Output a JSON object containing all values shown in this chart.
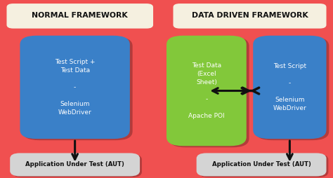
{
  "bg_color": "#f05050",
  "title_bg": "#f5f0e0",
  "title_left": "NORMAL FRAMEWORK",
  "title_right": "DATA DRIVEN FRAMEWORK",
  "box_blue": "#3a80c8",
  "box_green": "#82c83a",
  "box_aut": "#d4d4d4",
  "text_white": "#ffffff",
  "text_dark": "#111111",
  "arrow_color": "#111111",
  "box1_text": "Test Script +\nTest Data\n\n-\n\nSelenium\nWebDriver",
  "box2_text": "Test Data\n(Excel\nSheet)\n\n-\n\nApache POI",
  "box3_text": "Test Script\n\n-\n\nSelenium\nWebDriver",
  "aut_text": "Application Under Test (AUT)",
  "figw": 4.74,
  "figh": 2.54,
  "dpi": 100
}
